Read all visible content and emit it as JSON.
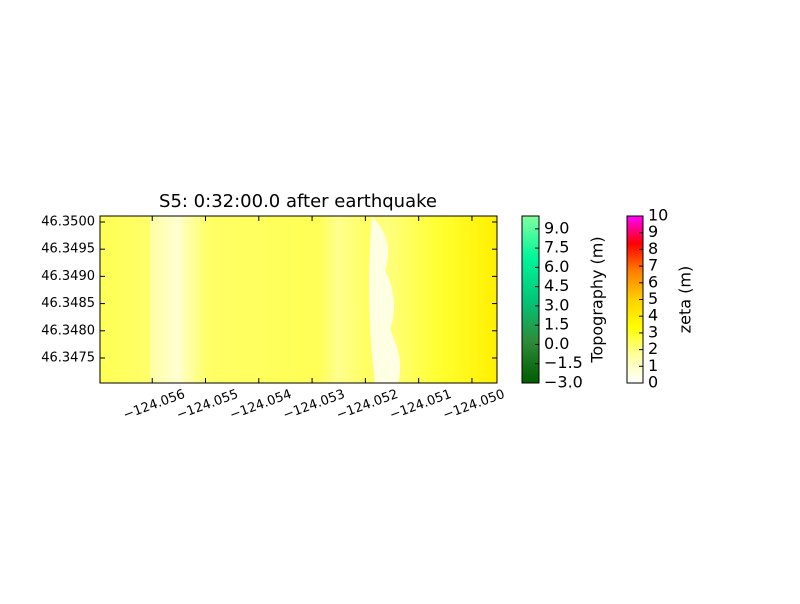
{
  "chart_data": {
    "type": "heatmap",
    "title": "S5: 0:32:00.0 after earthquake",
    "xlim": [
      -124.05698,
      -124.04953
    ],
    "ylim": [
      46.34704,
      46.35011
    ],
    "xticks": [
      {
        "value": -124.056,
        "label": "−124.056"
      },
      {
        "value": -124.055,
        "label": "−124.055"
      },
      {
        "value": -124.054,
        "label": "−124.054"
      },
      {
        "value": -124.053,
        "label": "−124.053"
      },
      {
        "value": -124.052,
        "label": "−124.052"
      },
      {
        "value": -124.051,
        "label": "−124.051"
      },
      {
        "value": -124.05,
        "label": "−124.050"
      }
    ],
    "yticks": [
      46.3475,
      {
        "value": 46.348,
        "label": "46.3480"
      },
      46.3485,
      {
        "value": 46.349,
        "label": "46.3490"
      },
      46.3495,
      {
        "value": 46.35,
        "label": "46.3500"
      }
    ],
    "colorbars": [
      {
        "label": "Topography (m)",
        "lim": [
          -3,
          10
        ],
        "colors": [
          "#005c00",
          "#2e8b3a",
          "#00c77a",
          "#00f59a",
          "#80ffa0"
        ],
        "ticks": [
          {
            "value": -3,
            "label": "−3.0"
          },
          {
            "value": -1.5,
            "label": "−1.5"
          },
          {
            "value": 0,
            "label": "0.0"
          },
          1.5,
          {
            "value": 3,
            "label": "3.0"
          },
          4.5,
          {
            "value": 6,
            "label": "6.0"
          },
          7.5,
          {
            "value": 9,
            "label": "9.0"
          }
        ]
      },
      {
        "label": "zeta (m)",
        "lim": [
          0,
          10
        ],
        "colors": [
          "#ffffff",
          "#ffffa0",
          "#ffff00",
          "#ffd000",
          "#ff8000",
          "#ff0000",
          "#ff00ff"
        ],
        "ticks": [
          0,
          1,
          2,
          3,
          4,
          5,
          6,
          7,
          8,
          9,
          10
        ]
      }
    ]
  }
}
